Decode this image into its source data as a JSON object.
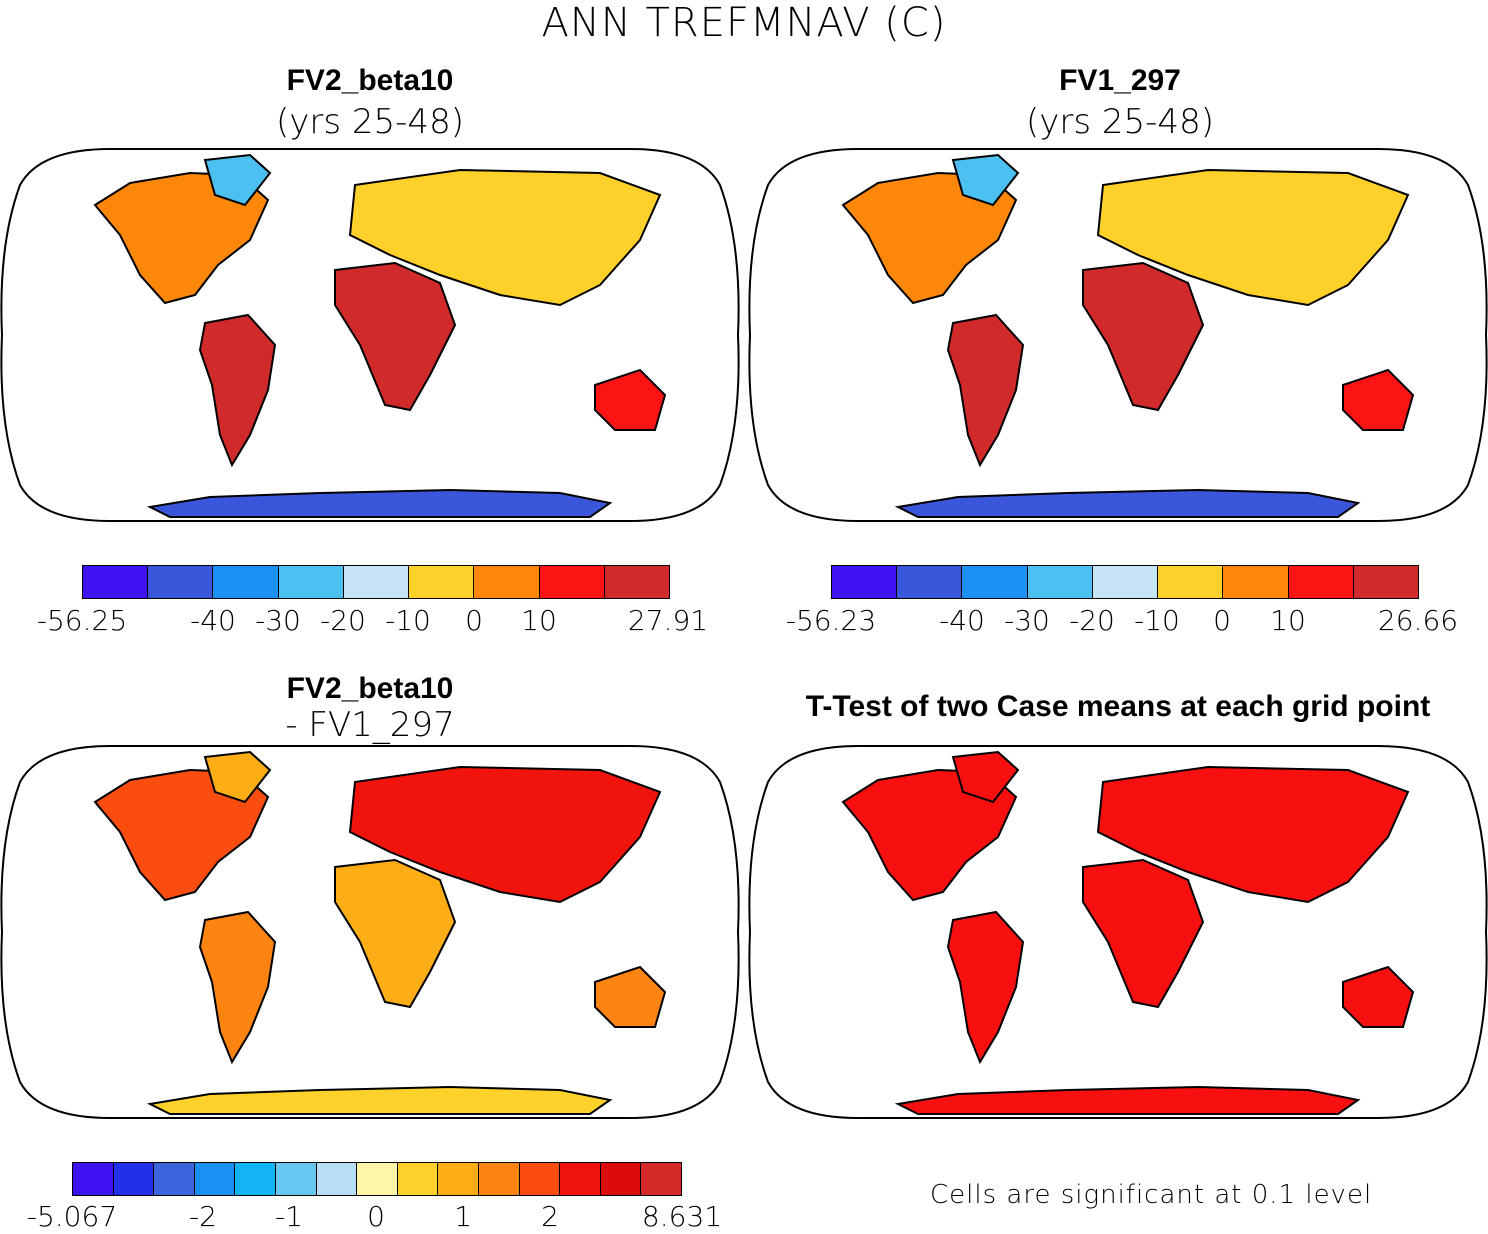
{
  "figure_title": "ANN TREFMNAV (C)",
  "colors": {
    "temp": [
      "#3f12f0",
      "#3a57dc",
      "#1a91f3",
      "#4cc0f0",
      "#c7e4f4",
      "#fed02a",
      "#fc8708",
      "#fc1414",
      "#d02a2a"
    ],
    "diff": [
      "#3f12f0",
      "#2230ea",
      "#3b65dd",
      "#1a90f5",
      "#12b4f4",
      "#66c8f0",
      "#b7def4",
      "#fef6a6",
      "#fed22a",
      "#fdad16",
      "#fd8410",
      "#fc4d10",
      "#f0140c",
      "#da0c0c",
      "#d42a2a"
    ],
    "sig": "#f81010",
    "ocean": "#ffffff",
    "coast": "#000000"
  },
  "panels": {
    "top_left": {
      "title": "FV2_beta10",
      "subtitle": "(yrs 25-48)",
      "colorbar_labels": [
        "-56.25",
        "-40",
        "-30",
        "-20",
        "-10",
        "0",
        "10",
        "27.91"
      ]
    },
    "top_right": {
      "title": "FV1_297",
      "subtitle": "(yrs 25-48)",
      "colorbar_labels": [
        "-56.23",
        "-40",
        "-30",
        "-20",
        "-10",
        "0",
        "10",
        "26.66"
      ]
    },
    "bottom_left": {
      "title": "FV2_beta10",
      "subtitle": "- FV1_297",
      "colorbar_labels": [
        "-5.067",
        "-2",
        "-1",
        "0",
        "1",
        "2",
        "8.631"
      ]
    },
    "bottom_right": {
      "title": "T-Test of two Case means at each grid point",
      "note": "Cells are significant at 0.1 level"
    }
  }
}
